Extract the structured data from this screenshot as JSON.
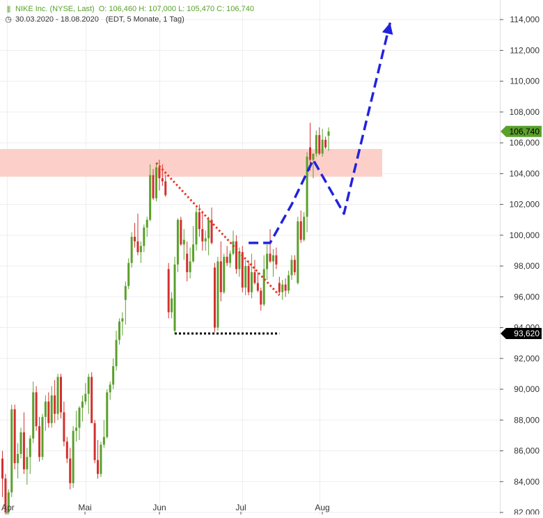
{
  "header": {
    "title": "NIKE Inc. (NYSE, Last)",
    "ohlc": "O: 106,460  H: 107,000  L: 105,470  C: 106,740",
    "period": "30.03.2020 - 18.08.2020",
    "period_detail": "(EDT, 5 Monate, 1 Tag)",
    "icons": {
      "bars": "candlestick-icon",
      "clock": "clock-icon"
    }
  },
  "colors": {
    "up": "#5aa02c",
    "down": "#d32f2f",
    "resistance_zone": "#fcd0c8",
    "trendline": "#e8321e",
    "support": "#000000",
    "projection": "#2222dd",
    "last_price_bg": "#5aa02c",
    "level_bg": "#000000",
    "grid": "#eeeeee"
  },
  "chart_data": {
    "type": "candlestick",
    "x_labels": [
      "Apr",
      "Mai",
      "Jun",
      "Jul",
      "Aug"
    ],
    "y_ticks": [
      "82,000",
      "84,000",
      "86,000",
      "88,000",
      "90,000",
      "92,000",
      "94,000",
      "96,000",
      "98,000",
      "100,000",
      "102,000",
      "104,000",
      "106,000",
      "108,000",
      "110,000",
      "112,000",
      "114,000"
    ],
    "ylim": [
      82,
      115
    ],
    "last_price_label": "106,740",
    "last_price": 106.74,
    "support_label": "93,620",
    "support_level": 93.62,
    "resistance_zone": [
      103.8,
      105.6
    ],
    "candles": [
      [
        85.5,
        86,
        83,
        84.2
      ],
      [
        84.2,
        84.5,
        81.5,
        82
      ],
      [
        82,
        83.5,
        81.8,
        83.3
      ],
      [
        83.3,
        89,
        83,
        88.7
      ],
      [
        88.7,
        89,
        84.8,
        85.2
      ],
      [
        85.2,
        86.5,
        84.2,
        85.8
      ],
      [
        85.8,
        87.5,
        85.5,
        87.2
      ],
      [
        87.2,
        88.5,
        84.5,
        84.8
      ],
      [
        84.8,
        86.2,
        83.8,
        85.6
      ],
      [
        85.6,
        87,
        84.5,
        86.8
      ],
      [
        86.8,
        90.5,
        86.5,
        89.8
      ],
      [
        89.8,
        90.2,
        87.3,
        87.6
      ],
      [
        87.6,
        88.2,
        85.3,
        85.6
      ],
      [
        85.6,
        88.4,
        85.4,
        88.2
      ],
      [
        88.2,
        89.6,
        87.3,
        89.2
      ],
      [
        89.2,
        89.8,
        87.5,
        87.8
      ],
      [
        87.8,
        90.2,
        87.5,
        89.6
      ],
      [
        89.6,
        90.6,
        87.8,
        88.4
      ],
      [
        88.4,
        91,
        88,
        90.8
      ],
      [
        90.8,
        91,
        88.1,
        88.5
      ],
      [
        88.5,
        89.2,
        86.3,
        86.6
      ],
      [
        86.6,
        86.9,
        85.2,
        85.5
      ],
      [
        85.5,
        86.2,
        83.5,
        83.9
      ],
      [
        83.9,
        87.6,
        83.6,
        87.3
      ],
      [
        87.3,
        88.6,
        86.6,
        87.5
      ],
      [
        87.5,
        88.9,
        86.7,
        88.8
      ],
      [
        88.8,
        89.6,
        87.9,
        89.2
      ],
      [
        89.2,
        90.4,
        89,
        89.7
      ],
      [
        89.7,
        91,
        88.4,
        90.8
      ],
      [
        90.8,
        91.1,
        87.8,
        87.8
      ],
      [
        87.8,
        88,
        85.2,
        85.4
      ],
      [
        85.4,
        86.7,
        84.2,
        84.5
      ],
      [
        84.5,
        86.6,
        84.3,
        86.4
      ],
      [
        86.4,
        88,
        86.2,
        86.9
      ],
      [
        86.9,
        90,
        86.8,
        89.8
      ],
      [
        89.8,
        90.5,
        89.3,
        90.3
      ],
      [
        90.3,
        92,
        90,
        91.5
      ],
      [
        91.5,
        93.8,
        91.2,
        93.2
      ],
      [
        93.2,
        94.6,
        92.9,
        94.4
      ],
      [
        94.4,
        95,
        93.5,
        94.6
      ],
      [
        95.8,
        97,
        94.2,
        96.7
      ],
      [
        96.7,
        98.5,
        96.5,
        98.2
      ],
      [
        98.2,
        100.2,
        97.9,
        99.9
      ],
      [
        99.9,
        100.8,
        99.2,
        99.6
      ],
      [
        99.6,
        101.4,
        98.7,
        98.9
      ],
      [
        98.9,
        99.6,
        98.2,
        99.3
      ],
      [
        99.3,
        100.7,
        98.9,
        100.5
      ],
      [
        100.5,
        101.2,
        99.9,
        101
      ],
      [
        101,
        104.6,
        100.9,
        103.9
      ],
      [
        103.9,
        104.3,
        102.3,
        102.4
      ],
      [
        102.4,
        104.7,
        102.2,
        104.4
      ],
      [
        104.4,
        104.9,
        102.9,
        103.7
      ],
      [
        103.7,
        104.6,
        103.2,
        103.5
      ],
      [
        103.5,
        103.9,
        102.5,
        102.6
      ],
      [
        97.8,
        98.2,
        94.6,
        95
      ],
      [
        95,
        96.3,
        94.6,
        95.9
      ],
      [
        93.8,
        98.6,
        93.6,
        98.1
      ],
      [
        98.1,
        101.1,
        97.6,
        101
      ],
      [
        101,
        101.2,
        99.3,
        99.4
      ],
      [
        99.4,
        100.4,
        98.4,
        99.7
      ],
      [
        98.8,
        99.6,
        97,
        97.6
      ],
      [
        97.6,
        99.2,
        97.2,
        98.3
      ],
      [
        98.3,
        100.6,
        98.2,
        99.4
      ],
      [
        99.4,
        101.8,
        99,
        101.5
      ],
      [
        101.5,
        102,
        99.9,
        100.4
      ],
      [
        100.4,
        101.6,
        99,
        99.6
      ],
      [
        99.6,
        100.3,
        99,
        99.8
      ],
      [
        99.8,
        101.2,
        98.7,
        101
      ],
      [
        101,
        101.8,
        99.4,
        99.5
      ],
      [
        97.9,
        98.2,
        93.7,
        94
      ],
      [
        94,
        98.6,
        93.8,
        98.3
      ],
      [
        98.3,
        99.6,
        95.7,
        96.3
      ],
      [
        96.3,
        98.8,
        96.2,
        98.6
      ],
      [
        98.6,
        99.3,
        98,
        98.2
      ],
      [
        98.2,
        99,
        97.9,
        98.8
      ],
      [
        98.8,
        100.3,
        98.7,
        99.6
      ],
      [
        99.6,
        100,
        97.5,
        97.8
      ],
      [
        97.8,
        99.2,
        97.3,
        98.9
      ],
      [
        98.9,
        99.3,
        96.3,
        96.6
      ],
      [
        96.6,
        98.4,
        96.1,
        98
      ],
      [
        98,
        98.3,
        96.1,
        96.3
      ],
      [
        96.3,
        98.8,
        95.9,
        97.6
      ],
      [
        97.6,
        98.4,
        96.8,
        96.9
      ],
      [
        96.9,
        97.6,
        96.3,
        96.4
      ],
      [
        96.4,
        96.6,
        95.1,
        95.5
      ],
      [
        95.5,
        98.7,
        95.4,
        97.8
      ],
      [
        97.8,
        99.4,
        97.1,
        98.8
      ],
      [
        98.8,
        100.4,
        98.2,
        98.3
      ],
      [
        98.3,
        99.1,
        97.3,
        98.7
      ],
      [
        98.7,
        99.2,
        97.8,
        98.1
      ],
      [
        96.9,
        97.3,
        96.1,
        96.3
      ],
      [
        96.3,
        97.1,
        95.8,
        96.8
      ],
      [
        96.8,
        97.2,
        96,
        96.4
      ],
      [
        96.4,
        97.7,
        96.2,
        97.4
      ],
      [
        97.4,
        98.7,
        97.1,
        98.4
      ],
      [
        98.4,
        98.7,
        97.4,
        97.6
      ],
      [
        96.9,
        101.2,
        96.8,
        100.9
      ],
      [
        100.9,
        101.6,
        99.5,
        99.7
      ],
      [
        99.7,
        101.5,
        99.6,
        101.2
      ],
      [
        101.2,
        105.4,
        100.2,
        105.1
      ],
      [
        105.7,
        107.3,
        104.2,
        104.9
      ],
      [
        104.9,
        105.2,
        103.7,
        105.3
      ],
      [
        105.3,
        106.8,
        105.1,
        106.5
      ],
      [
        106.5,
        107,
        105.2,
        105.3
      ],
      [
        105.3,
        106.9,
        105.1,
        106.2
      ],
      [
        106.2,
        106.4,
        105.6,
        105.7
      ],
      [
        106.46,
        107,
        105.47,
        106.74
      ]
    ],
    "trendline": [
      [
        50,
        104.7
      ],
      [
        90,
        96.1
      ]
    ],
    "support_line": [
      [
        56,
        93.62
      ],
      [
        90,
        93.62
      ]
    ],
    "projection_path": [
      [
        80,
        99.5
      ],
      [
        87,
        99.5
      ],
      [
        94,
        102
      ],
      [
        101,
        104.9
      ],
      [
        111,
        101.4
      ],
      [
        126,
        113.8
      ]
    ]
  }
}
